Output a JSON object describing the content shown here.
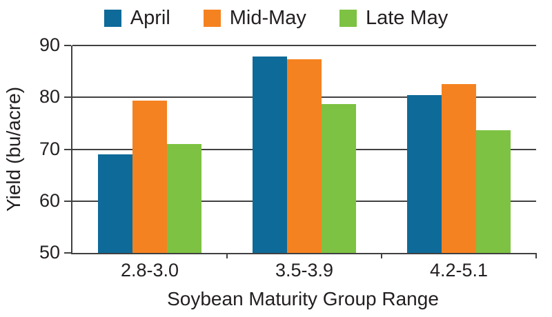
{
  "chart_data": {
    "type": "bar",
    "title": "",
    "categories": [
      "2.8-3.0",
      "3.5-3.9",
      "4.2-5.1"
    ],
    "series": [
      {
        "name": "April",
        "color": "#0E6A99",
        "values": [
          69.0,
          87.9,
          80.5
        ]
      },
      {
        "name": "Mid-May",
        "color": "#F58220",
        "values": [
          79.4,
          87.4,
          82.5
        ]
      },
      {
        "name": "Late May",
        "color": "#7DC242",
        "values": [
          71.0,
          78.7,
          73.7
        ]
      }
    ],
    "xlabel": "Soybean Maturity Group Range",
    "ylabel": "Yield (bu/acre)",
    "ylim": [
      50,
      90
    ],
    "yticks": [
      50,
      60,
      70,
      80,
      90
    ],
    "grid": "horizontal",
    "legend_position": "top"
  },
  "colors": {
    "axis_line": "#404042",
    "text": "#231F20",
    "background": "#FFFFFF"
  }
}
